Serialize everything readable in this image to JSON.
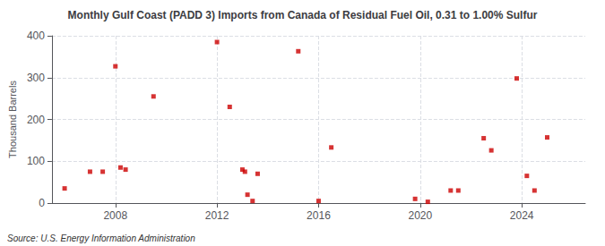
{
  "chart_data": {
    "type": "scatter",
    "title": "Monthly Gulf Coast (PADD 3) Imports from Canada of Residual Fuel Oil, 0.31 to 1.00% Sulfur",
    "ylabel": "Thousand Barrels",
    "annotations": [
      "Source: U.S. Energy Information Administration"
    ],
    "color": "#cc0000",
    "marker": "square",
    "grid": true,
    "xlim": [
      2005.5,
      2026.5
    ],
    "xticks": [
      2008,
      2012,
      2016,
      2020,
      2024
    ],
    "ylim": [
      0,
      400
    ],
    "yticks": [
      0,
      100,
      200,
      300,
      400
    ],
    "x": [
      2006.0,
      2007.0,
      2007.5,
      2008.0,
      2008.2,
      2008.4,
      2009.5,
      2012.0,
      2012.5,
      2013.0,
      2013.1,
      2013.2,
      2013.4,
      2013.6,
      2015.2,
      2016.0,
      2016.5,
      2019.8,
      2020.3,
      2021.2,
      2021.5,
      2022.5,
      2022.8,
      2023.8,
      2024.2,
      2024.5,
      2025.0
    ],
    "values": [
      35,
      75,
      75,
      327,
      85,
      80,
      255,
      385,
      230,
      80,
      75,
      20,
      5,
      70,
      363,
      5,
      133,
      10,
      3,
      30,
      30,
      155,
      126,
      298,
      65,
      30,
      157
    ]
  }
}
